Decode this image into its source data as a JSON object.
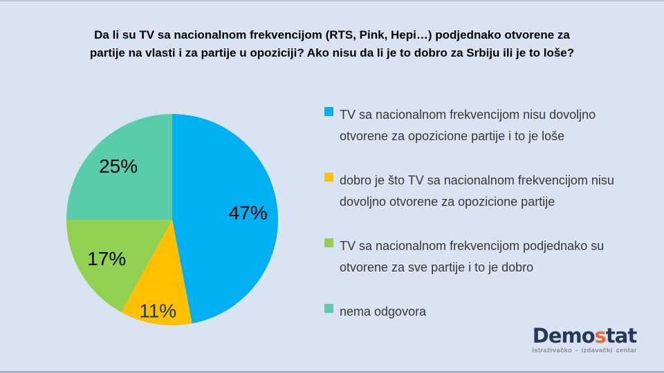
{
  "colors": {
    "background": "#D9E3F1",
    "logo_navy": "#26395B",
    "logo_orange": "#E8693E",
    "title_text": "#000000",
    "legend_text": "#373737"
  },
  "title": {
    "line1": "Da li su TV sa nacionalnom  frekvencijom (RTS, Pink, Hepi…) podjednako otvorene za",
    "line2": "partije na vlasti i za partije u opoziciji? Ako nisu da li je to dobro za Srbiju ili je to loše?"
  },
  "chart_data": {
    "type": "pie",
    "title": "Da li su TV sa nacionalnom frekvencijom (RTS, Pink, Hepi…) podjednako otvorene za partije na vlasti i za partije u opoziciji? Ako nisu da li je to dobro za Srbiju ili je to loše?",
    "direction": "clockwise",
    "start_angle_deg": 0,
    "legend_position": "right",
    "total": 100,
    "slices": [
      {
        "label": "TV sa nacionalnom frekvencijom nisu dovoljno otvorene za opozicione partije i to je loše",
        "lines": [
          "TV sa nacionalnom frekvencijom nisu dovoljno",
          "otvorene za opozicione partije i to je loše"
        ],
        "value": 47,
        "pct_label": "47%",
        "color": "#00B0F0",
        "label_color": "#000000",
        "label_radius": 0.72
      },
      {
        "label": "dobro je što TV sa nacionalnom frekvencijom nisu dovoljno otvorene za opozicione partije",
        "lines": [
          "dobro je što TV sa nacionalnom frekvencijom nisu",
          "dovoljno otvorene za opozicione partije"
        ],
        "value": 11,
        "pct_label": "11%",
        "color": "#FFC000",
        "label_color": "#1F3864",
        "label_radius": 0.87
      },
      {
        "label": "TV sa nacionalnom frekvencijom podjednako su otvorene za sve partije i to je dobro",
        "lines": [
          "TV sa nacionalnom frekvencijom podjednako su",
          "otvorene za sve partije i to je dobro"
        ],
        "value": 17,
        "pct_label": "17%",
        "color": "#92D050",
        "label_color": "#000000",
        "label_radius": 0.72
      },
      {
        "label": "nema odgovora",
        "lines": [
          "nema odgovora"
        ],
        "value": 25,
        "pct_label": "25%",
        "color": "#59CDAA",
        "label_color": "#000000",
        "label_radius": 0.72
      }
    ]
  },
  "logo": {
    "part1": "Demo",
    "part2": "s",
    "part3": "tat",
    "subtitle": "istraživačko - izdavački  centar"
  }
}
